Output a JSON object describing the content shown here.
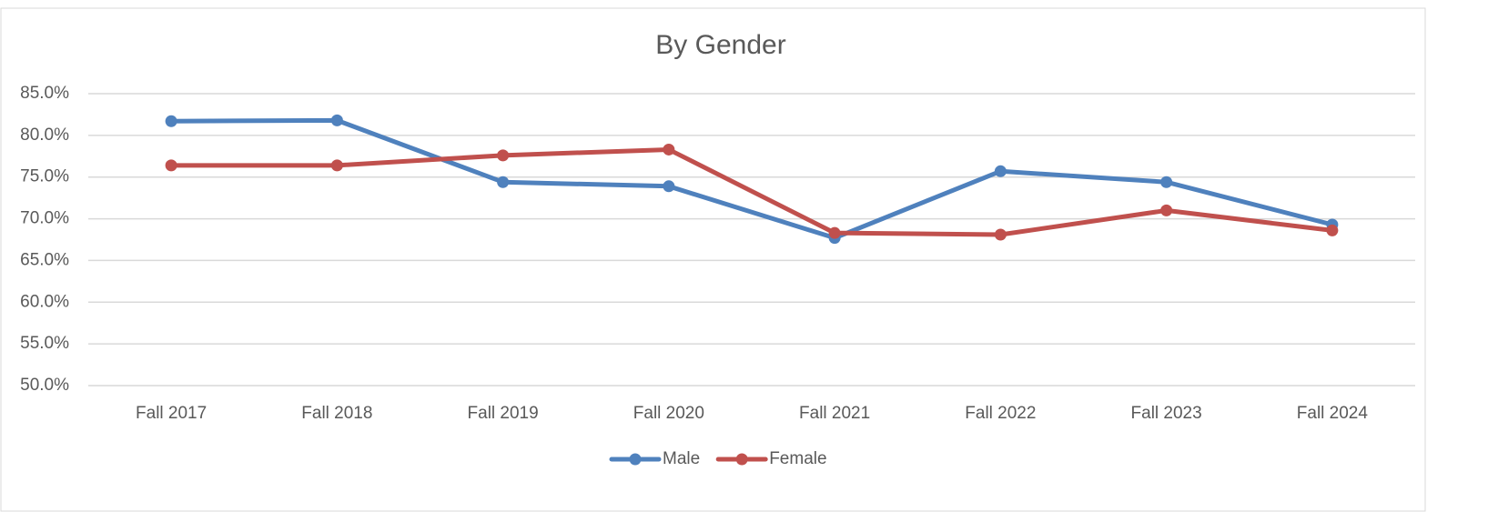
{
  "chart_data": {
    "type": "line",
    "title": "By Gender",
    "categories": [
      "Fall 2017",
      "Fall 2018",
      "Fall 2019",
      "Fall 2020",
      "Fall 2021",
      "Fall 2022",
      "Fall 2023",
      "Fall 2024"
    ],
    "series": [
      {
        "name": "Male",
        "color": "#4f81bd",
        "values": [
          81.7,
          81.8,
          74.4,
          73.9,
          67.7,
          75.7,
          74.4,
          69.3
        ]
      },
      {
        "name": "Female",
        "color": "#c0504d",
        "values": [
          76.4,
          76.4,
          77.6,
          78.3,
          68.3,
          68.1,
          71.0,
          68.6
        ]
      }
    ],
    "ylim": [
      50,
      85
    ],
    "yticks": [
      {
        "value": 50,
        "label": "50.0%"
      },
      {
        "value": 55,
        "label": "55.0%"
      },
      {
        "value": 60,
        "label": "60.0%"
      },
      {
        "value": 65,
        "label": "65.0%"
      },
      {
        "value": 70,
        "label": "70.0%"
      },
      {
        "value": 75,
        "label": "75.0%"
      },
      {
        "value": 80,
        "label": "80.0%"
      },
      {
        "value": 85,
        "label": "85.0%"
      }
    ],
    "grid": true,
    "legend": "bottom"
  }
}
